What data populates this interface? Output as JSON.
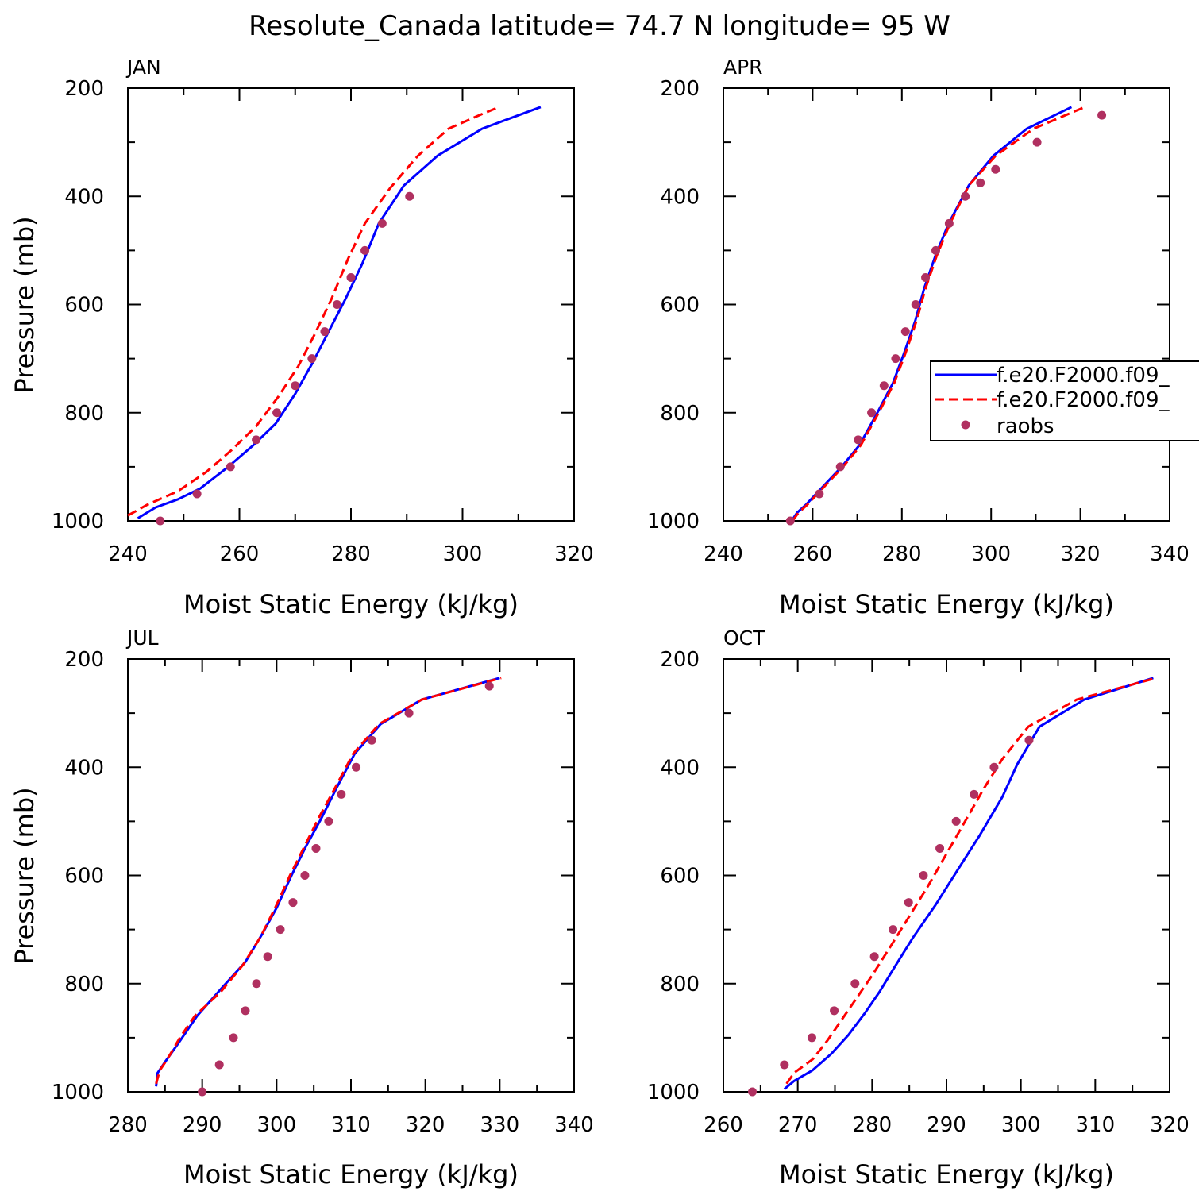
{
  "title": "Resolute_Canada  latitude= 74.7 N longitude= 95 W",
  "legend": {
    "entries": [
      {
        "label": "f.e20.F2000.f09_",
        "style": "solid",
        "color": "#0000ff"
      },
      {
        "label": "f.e20.F2000.f09_",
        "style": "dashed",
        "color": "#ff0000"
      },
      {
        "label": "raobs",
        "style": "marker",
        "color": "#b03060"
      }
    ]
  },
  "colors": {
    "model1": "#0000ff",
    "model2": "#ff0000",
    "raobs": "#b03060"
  },
  "chart_data": [
    {
      "type": "line",
      "panel_label": "JAN",
      "xlabel": "Moist Static Energy (kJ/kg)",
      "ylabel": "Pressure (mb)",
      "xlim": [
        240,
        320
      ],
      "ylim": [
        1000,
        200
      ],
      "xticks": [
        240,
        260,
        280,
        300,
        320
      ],
      "yticks": [
        200,
        400,
        600,
        800,
        1000
      ],
      "series": [
        {
          "x": [
            241.8,
            245,
            249,
            253,
            258,
            262.5,
            266.5,
            270,
            273,
            276,
            279,
            282,
            285,
            289.5,
            295.5,
            303.5,
            314
          ],
          "y": [
            995,
            975,
            960,
            940,
            900,
            860,
            820,
            765,
            710,
            650,
            590,
            525,
            450,
            380,
            325,
            275,
            235
          ]
        },
        {
          "x": [
            240,
            243.5,
            249,
            254,
            258.5,
            263,
            267,
            270.5,
            273.5,
            276.5,
            279.5,
            282.5,
            287,
            292,
            297.5,
            303,
            306.5
          ],
          "y": [
            990,
            970,
            945,
            910,
            870,
            825,
            770,
            715,
            655,
            590,
            515,
            450,
            385,
            325,
            275,
            250,
            235
          ]
        },
        {
          "name": "raobs",
          "x": [
            245.8,
            252.4,
            258.4,
            263,
            266.7,
            270,
            273,
            275.3,
            277.5,
            280,
            282.5,
            285.6,
            290.5
          ],
          "y": [
            1000,
            950,
            900,
            850,
            800,
            750,
            700,
            650,
            600,
            550,
            500,
            450,
            400
          ]
        }
      ]
    },
    {
      "type": "line",
      "panel_label": "APR",
      "xlabel": "Moist Static Energy (kJ/kg)",
      "ylabel": "",
      "xlim": [
        240,
        340
      ],
      "ylim": [
        1000,
        200
      ],
      "xticks": [
        240,
        260,
        280,
        300,
        320,
        340
      ],
      "yticks": [
        200,
        400,
        600,
        800,
        1000
      ],
      "series": [
        {
          "x": [
            255.3,
            256.5,
            258.5,
            262.5,
            266.5,
            270.5,
            274.5,
            278,
            280.5,
            283,
            285,
            287.5,
            290.5,
            295,
            300.5,
            308,
            318
          ],
          "y": [
            1000,
            985,
            970,
            935,
            900,
            860,
            800,
            745,
            690,
            630,
            570,
            510,
            450,
            380,
            325,
            275,
            235
          ]
        },
        {
          "x": [
            255.5,
            256.8,
            258.8,
            262.8,
            266.8,
            270.8,
            274.8,
            278.3,
            280.8,
            283.3,
            285.3,
            287.8,
            290.8,
            295,
            301,
            309.5,
            321
          ],
          "y": [
            1000,
            985,
            970,
            935,
            900,
            860,
            800,
            745,
            690,
            630,
            570,
            510,
            450,
            380,
            325,
            275,
            235
          ]
        },
        {
          "name": "raobs",
          "x": [
            255,
            261.5,
            266.2,
            270.2,
            273.2,
            276,
            278.6,
            280.8,
            283.1,
            285.3,
            287.6,
            290.6,
            294.2,
            297.6,
            301,
            310.3,
            324.8
          ],
          "y": [
            1000,
            950,
            900,
            850,
            800,
            750,
            700,
            650,
            600,
            550,
            500,
            450,
            400,
            375,
            350,
            300,
            250
          ]
        }
      ]
    },
    {
      "type": "line",
      "panel_label": "JUL",
      "xlabel": "Moist Static Energy (kJ/kg)",
      "ylabel": "Pressure (mb)",
      "xlim": [
        280,
        340
      ],
      "ylim": [
        1000,
        200
      ],
      "xticks": [
        280,
        290,
        300,
        310,
        320,
        330,
        340
      ],
      "yticks": [
        200,
        400,
        600,
        800,
        1000
      ],
      "series": [
        {
          "x": [
            283.8,
            284,
            285,
            286.8,
            289.3,
            292.5,
            295.8,
            298,
            300,
            302,
            304,
            306,
            308,
            310.5,
            314,
            319.5,
            330
          ],
          "y": [
            990,
            965,
            945,
            910,
            860,
            810,
            760,
            710,
            660,
            600,
            545,
            495,
            440,
            375,
            320,
            275,
            235
          ]
        },
        {
          "x": [
            283.8,
            284.3,
            285.3,
            287,
            289,
            292.5,
            295.5,
            297.8,
            299.8,
            301.8,
            303.8,
            305.8,
            307.8,
            310.3,
            313.8,
            319.5,
            330.2
          ],
          "y": [
            985,
            960,
            940,
            900,
            860,
            815,
            765,
            715,
            660,
            600,
            545,
            490,
            440,
            375,
            320,
            275,
            235
          ]
        },
        {
          "name": "raobs",
          "x": [
            290,
            292.3,
            294.2,
            295.8,
            297.3,
            298.8,
            300.5,
            302.2,
            303.8,
            305.3,
            307,
            308.7,
            310.7,
            312.8,
            317.8,
            328.6
          ],
          "y": [
            1000,
            950,
            900,
            850,
            800,
            750,
            700,
            650,
            600,
            550,
            500,
            450,
            400,
            350,
            300,
            250
          ]
        }
      ]
    },
    {
      "type": "line",
      "panel_label": "OCT",
      "xlabel": "Moist Static Energy (kJ/kg)",
      "ylabel": "",
      "xlim": [
        260,
        320
      ],
      "ylim": [
        1000,
        200
      ],
      "xticks": [
        260,
        270,
        280,
        290,
        300,
        310,
        320
      ],
      "yticks": [
        200,
        400,
        600,
        800,
        1000
      ],
      "series": [
        {
          "x": [
            268.2,
            269.5,
            272,
            274.5,
            276.8,
            279,
            281,
            283,
            285.5,
            288.5,
            291.5,
            294.5,
            297.5,
            299.5,
            302.5,
            308.5,
            317.8
          ],
          "y": [
            995,
            980,
            960,
            930,
            895,
            855,
            815,
            770,
            715,
            655,
            590,
            525,
            455,
            395,
            325,
            275,
            235
          ]
        },
        {
          "x": [
            268.5,
            269.5,
            272,
            274,
            276,
            278,
            280,
            282.3,
            284.8,
            287.5,
            290,
            292.5,
            295,
            297.5,
            301,
            307.5,
            318.2
          ],
          "y": [
            985,
            965,
            940,
            905,
            865,
            825,
            785,
            735,
            680,
            620,
            560,
            500,
            440,
            385,
            325,
            275,
            235
          ]
        },
        {
          "name": "raobs",
          "x": [
            263.9,
            268.2,
            271.9,
            274.9,
            277.7,
            280.3,
            282.8,
            284.9,
            286.9,
            289.1,
            291.3,
            293.7,
            296.4,
            301.1
          ],
          "y": [
            1000,
            950,
            900,
            850,
            800,
            750,
            700,
            650,
            600,
            550,
            500,
            450,
            400,
            350
          ]
        }
      ]
    }
  ]
}
